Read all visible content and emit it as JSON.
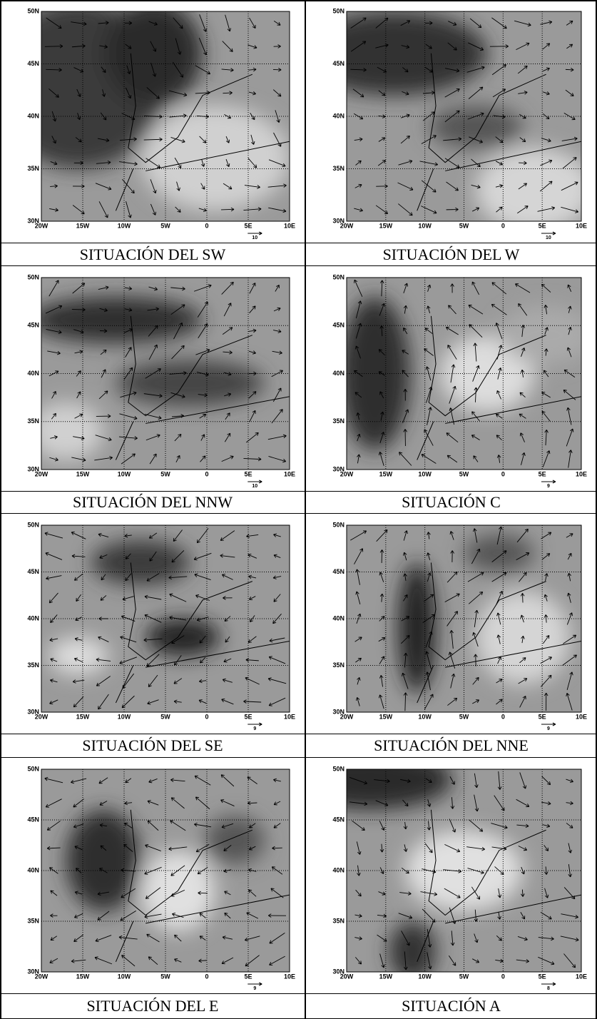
{
  "panels": [
    {
      "caption": "SITUACIÓN DEL SW",
      "scale_label": "10"
    },
    {
      "caption": "SITUACIÓN DEL W",
      "scale_label": "10"
    },
    {
      "caption": "SITUACIÓN DEL NNW",
      "scale_label": "10"
    },
    {
      "caption": "SITUACIÓN C",
      "scale_label": "9"
    },
    {
      "caption": "SITUACIÓN DEL SE",
      "scale_label": "9"
    },
    {
      "caption": "SITUACIÓN DEL NNE",
      "scale_label": "9"
    },
    {
      "caption": "SITUACIÓN DEL E",
      "scale_label": "9"
    },
    {
      "caption": "SITUACIÓN A",
      "scale_label": "8"
    }
  ],
  "lat_labels": [
    "50N",
    "45N",
    "40N",
    "35N",
    "30N"
  ],
  "lon_labels": [
    "20W",
    "15W",
    "10W",
    "5W",
    "0",
    "5E",
    "10E"
  ]
}
